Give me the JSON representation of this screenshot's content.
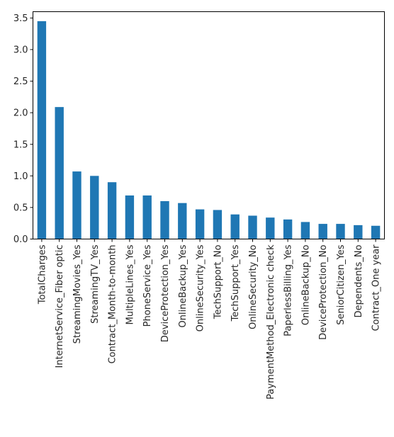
{
  "chart_data": {
    "type": "bar",
    "title": "",
    "xlabel": "",
    "ylabel": "",
    "ylim": [
      0,
      3.6
    ],
    "yticks": [
      "0.0",
      "0.5",
      "1.0",
      "1.5",
      "2.0",
      "2.5",
      "3.0",
      "3.5"
    ],
    "grid": false,
    "legend": "none",
    "bar_color": "#1f77b4",
    "categories": [
      "TotalCharges",
      "InternetService_Fiber optic",
      "StreamingMovies_Yes",
      "StreamingTV_Yes",
      "Contract_Month-to-month",
      "MultipleLines_Yes",
      "PhoneService_Yes",
      "DeviceProtection_Yes",
      "OnlineBackup_Yes",
      "OnlineSecurity_Yes",
      "TechSupport_No",
      "TechSupport_Yes",
      "OnlineSecurity_No",
      "PaymentMethod_Electronic check",
      "PaperlessBilling_Yes",
      "OnlineBackup_No",
      "DeviceProtection_No",
      "SeniorCitizen_Yes",
      "Dependents_No",
      "Contract_One year"
    ],
    "values": [
      3.45,
      2.09,
      1.07,
      1.0,
      0.9,
      0.69,
      0.69,
      0.6,
      0.57,
      0.47,
      0.46,
      0.39,
      0.37,
      0.34,
      0.31,
      0.27,
      0.24,
      0.24,
      0.22,
      0.21
    ]
  }
}
